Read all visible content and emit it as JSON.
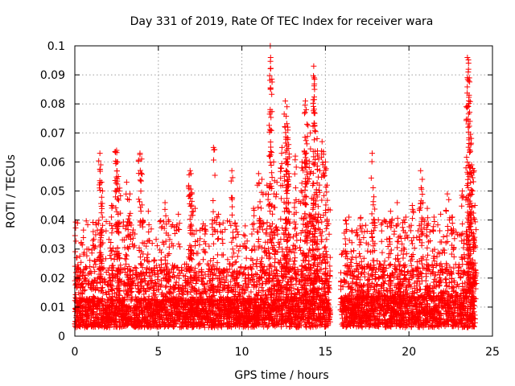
{
  "chart_data": {
    "type": "scatter",
    "title": "Day 331 of 2019, Rate Of TEC Index for receiver wara",
    "xlabel": "GPS time / hours",
    "ylabel": "ROTI / TECUs",
    "xlim": [
      0,
      25
    ],
    "ylim": [
      0,
      0.1
    ],
    "xticks": [
      0,
      5,
      10,
      15,
      20,
      25
    ],
    "yticks": [
      0,
      0.01,
      0.02,
      0.03,
      0.04,
      0.05,
      0.06,
      0.07,
      0.08,
      0.09,
      0.1
    ],
    "grid": true,
    "marker": "plus",
    "series_color": "#ff0000",
    "data_gap_hours": [
      15.3,
      15.9
    ],
    "series": [
      {
        "points": [
          [
            0.1,
            0.027
          ],
          [
            0.3,
            0.021
          ],
          [
            0.6,
            0.02
          ],
          [
            0.9,
            0.024
          ],
          [
            1.1,
            0.036
          ],
          [
            1.2,
            0.026
          ],
          [
            1.5,
            0.063
          ],
          [
            1.55,
            0.059
          ],
          [
            1.6,
            0.053
          ],
          [
            1.65,
            0.041
          ],
          [
            2.2,
            0.045
          ],
          [
            2.5,
            0.064
          ],
          [
            2.55,
            0.06
          ],
          [
            2.6,
            0.055
          ],
          [
            2.65,
            0.05
          ],
          [
            3.1,
            0.053
          ],
          [
            3.3,
            0.049
          ],
          [
            3.9,
            0.063
          ],
          [
            4.0,
            0.061
          ],
          [
            4.4,
            0.043
          ],
          [
            5.4,
            0.046
          ],
          [
            5.6,
            0.04
          ],
          [
            6.2,
            0.042
          ],
          [
            6.9,
            0.057
          ],
          [
            6.95,
            0.056
          ],
          [
            7.0,
            0.049
          ],
          [
            7.2,
            0.044
          ],
          [
            7.8,
            0.038
          ],
          [
            8.3,
            0.065
          ],
          [
            8.6,
            0.042
          ],
          [
            9.4,
            0.057
          ],
          [
            9.6,
            0.039
          ],
          [
            10.2,
            0.038
          ],
          [
            10.7,
            0.044
          ],
          [
            11.0,
            0.056
          ],
          [
            11.2,
            0.054
          ],
          [
            11.5,
            0.052
          ],
          [
            11.7,
            0.1
          ],
          [
            11.72,
            0.096
          ],
          [
            11.9,
            0.06
          ],
          [
            12.1,
            0.053
          ],
          [
            12.4,
            0.065
          ],
          [
            12.6,
            0.081
          ],
          [
            12.7,
            0.079
          ],
          [
            12.75,
            0.072
          ],
          [
            12.8,
            0.066
          ],
          [
            13.2,
            0.062
          ],
          [
            13.6,
            0.06
          ],
          [
            13.8,
            0.081
          ],
          [
            13.85,
            0.078
          ],
          [
            13.9,
            0.073
          ],
          [
            14.1,
            0.07
          ],
          [
            14.3,
            0.093
          ],
          [
            14.32,
            0.089
          ],
          [
            14.35,
            0.085
          ],
          [
            14.5,
            0.068
          ],
          [
            14.6,
            0.061
          ],
          [
            14.8,
            0.067
          ],
          [
            15.0,
            0.06
          ],
          [
            15.1,
            0.052
          ],
          [
            16.2,
            0.04
          ],
          [
            16.6,
            0.036
          ],
          [
            17.2,
            0.038
          ],
          [
            17.8,
            0.063
          ],
          [
            17.9,
            0.048
          ],
          [
            18.4,
            0.039
          ],
          [
            18.9,
            0.043
          ],
          [
            19.3,
            0.046
          ],
          [
            19.7,
            0.04
          ],
          [
            20.2,
            0.045
          ],
          [
            20.7,
            0.057
          ],
          [
            20.8,
            0.054
          ],
          [
            21.1,
            0.044
          ],
          [
            21.5,
            0.041
          ],
          [
            21.9,
            0.042
          ],
          [
            22.3,
            0.049
          ],
          [
            22.6,
            0.041
          ],
          [
            23.2,
            0.05
          ],
          [
            23.5,
            0.096
          ],
          [
            23.55,
            0.091
          ],
          [
            23.6,
            0.083
          ],
          [
            23.65,
            0.074
          ],
          [
            23.7,
            0.066
          ],
          [
            23.75,
            0.059
          ],
          [
            23.8,
            0.05
          ],
          [
            23.9,
            0.057
          ],
          [
            23.95,
            0.045
          ]
        ],
        "baseline_bands": [
          {
            "x_from": 0.0,
            "x_to": 15.3,
            "y_low": 0.003,
            "y_typical": 0.012
          },
          {
            "x_from": 15.9,
            "x_to": 24.0,
            "y_low": 0.003,
            "y_typical": 0.013
          }
        ]
      }
    ]
  }
}
